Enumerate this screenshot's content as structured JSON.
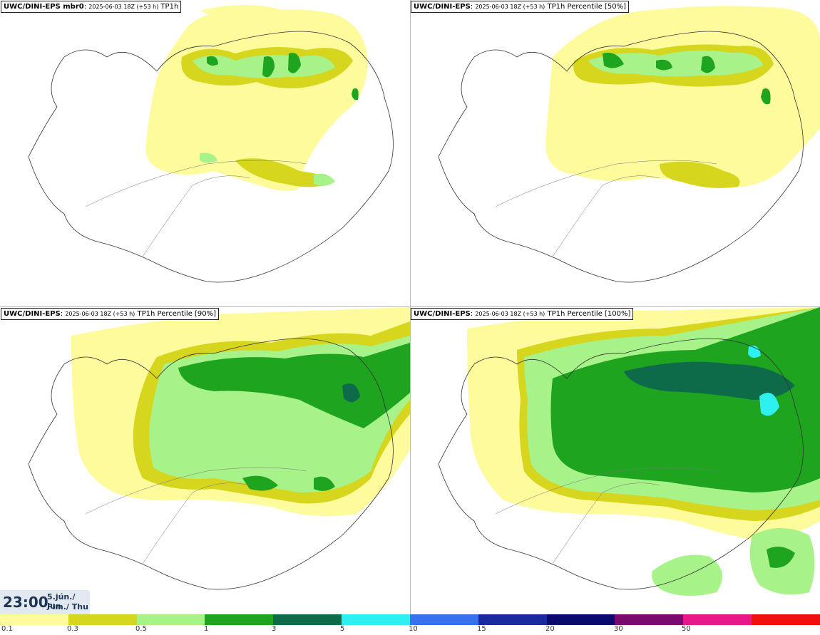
{
  "panels": [
    {
      "model": "UWC/DINI-EPS mbr0",
      "sep": ": ",
      "run": "2025-06-03 18Z (+53 h)",
      "field": "TP1h"
    },
    {
      "model": "UWC/DINI-EPS",
      "sep": ": ",
      "run": "2025-06-03 18Z (+53 h)",
      "field": "TP1h Percentile [50%]"
    },
    {
      "model": "UWC/DINI-EPS",
      "sep": ": ",
      "run": "2025-06-03 18Z (+53 h)",
      "field": "TP1h Percentile [90%]"
    },
    {
      "model": "UWC/DINI-EPS",
      "sep": ": ",
      "run": "2025-06-03 18Z (+53 h)",
      "field": "TP1h Percentile [100%]"
    }
  ],
  "clock": {
    "time": "23:00",
    "date_line": "5.jún./ Jun",
    "day_line": "Fim./ Thu"
  },
  "legend": {
    "colors": [
      "#fdfb9c",
      "#d6d61e",
      "#a8f28a",
      "#1ea41e",
      "#0e6b4a",
      "#2ff0f0",
      "#3a6ff0",
      "#1a2a9e",
      "#0a0a6e",
      "#7a0a6e",
      "#e8178a",
      "#f01010"
    ],
    "ticks": [
      "0.1",
      "0.3",
      "0.5",
      "1",
      "3",
      "5",
      "10",
      "15",
      "20",
      "30",
      "50"
    ]
  }
}
